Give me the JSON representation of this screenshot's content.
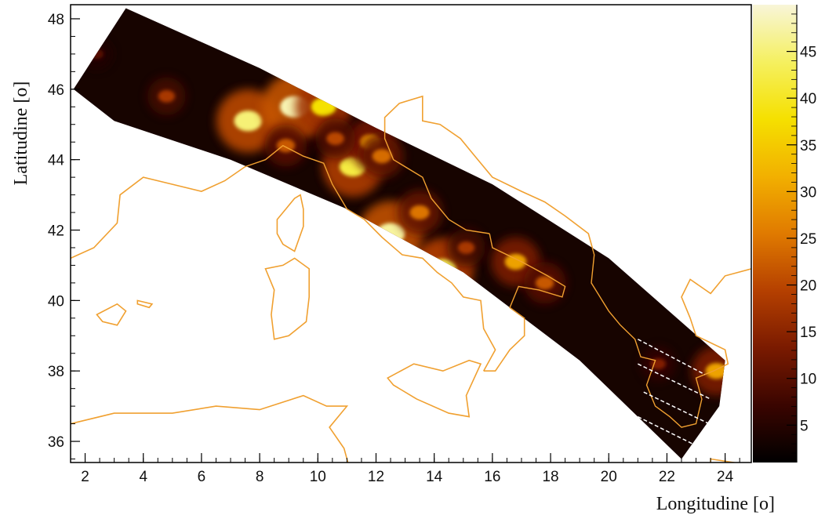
{
  "chart_data": {
    "type": "heatmap",
    "title": "",
    "xlabel": "Longitudine [o]",
    "ylabel": "Latitudine [o]",
    "xlim": [
      1.5,
      24.9
    ],
    "ylim": [
      35.4,
      48.4
    ],
    "x_ticks": [
      2,
      4,
      6,
      8,
      10,
      12,
      14,
      16,
      18,
      20,
      22,
      24
    ],
    "y_ticks": [
      36,
      38,
      40,
      42,
      44,
      46,
      48
    ],
    "colorbar": {
      "min": 1,
      "max": 50,
      "ticks": [
        5,
        10,
        15,
        20,
        25,
        30,
        35,
        40,
        45
      ],
      "colors": [
        "#000000",
        "#3a0500",
        "#7a1a00",
        "#b54000",
        "#e07a00",
        "#f2b000",
        "#f5e000",
        "#f5f060",
        "#f8f5d8"
      ]
    },
    "coastline_color": "#f0a030",
    "swath": {
      "description_points_lon_lat": [
        [
          1.6,
          46.0
        ],
        [
          3.4,
          48.3
        ],
        [
          8,
          46.6
        ],
        [
          12,
          44.9
        ],
        [
          16,
          43.3
        ],
        [
          20,
          41.2
        ],
        [
          24,
          38.3
        ],
        [
          23.8,
          37.0
        ],
        [
          22.5,
          35.5
        ],
        [
          19,
          38.3
        ],
        [
          15,
          40.8
        ],
        [
          11,
          42.6
        ],
        [
          7,
          44.0
        ],
        [
          3,
          45.1
        ]
      ]
    },
    "hotspots": [
      {
        "lon": 7.6,
        "lat": 45.1,
        "value": 45
      },
      {
        "lon": 9.2,
        "lat": 45.5,
        "value": 48
      },
      {
        "lon": 10.2,
        "lat": 45.5,
        "value": 38
      },
      {
        "lon": 11.2,
        "lat": 43.8,
        "value": 42
      },
      {
        "lon": 12.5,
        "lat": 41.9,
        "value": 47
      },
      {
        "lon": 14.3,
        "lat": 40.9,
        "value": 43
      },
      {
        "lon": 16.8,
        "lat": 41.1,
        "value": 30
      },
      {
        "lon": 17.8,
        "lat": 40.5,
        "value": 22
      },
      {
        "lon": 13.5,
        "lat": 42.5,
        "value": 25
      },
      {
        "lon": 11.8,
        "lat": 44.5,
        "value": 28
      },
      {
        "lon": 8.9,
        "lat": 44.4,
        "value": 22
      },
      {
        "lon": 4.8,
        "lat": 45.8,
        "value": 18
      },
      {
        "lon": 2.4,
        "lat": 47.0,
        "value": 10
      },
      {
        "lon": 23.7,
        "lat": 38.0,
        "value": 30
      },
      {
        "lon": 21.7,
        "lat": 38.2,
        "value": 14
      },
      {
        "lon": 15.1,
        "lat": 41.5,
        "value": 18
      },
      {
        "lon": 10.6,
        "lat": 44.6,
        "value": 20
      },
      {
        "lon": 12.2,
        "lat": 44.1,
        "value": 24
      }
    ]
  }
}
